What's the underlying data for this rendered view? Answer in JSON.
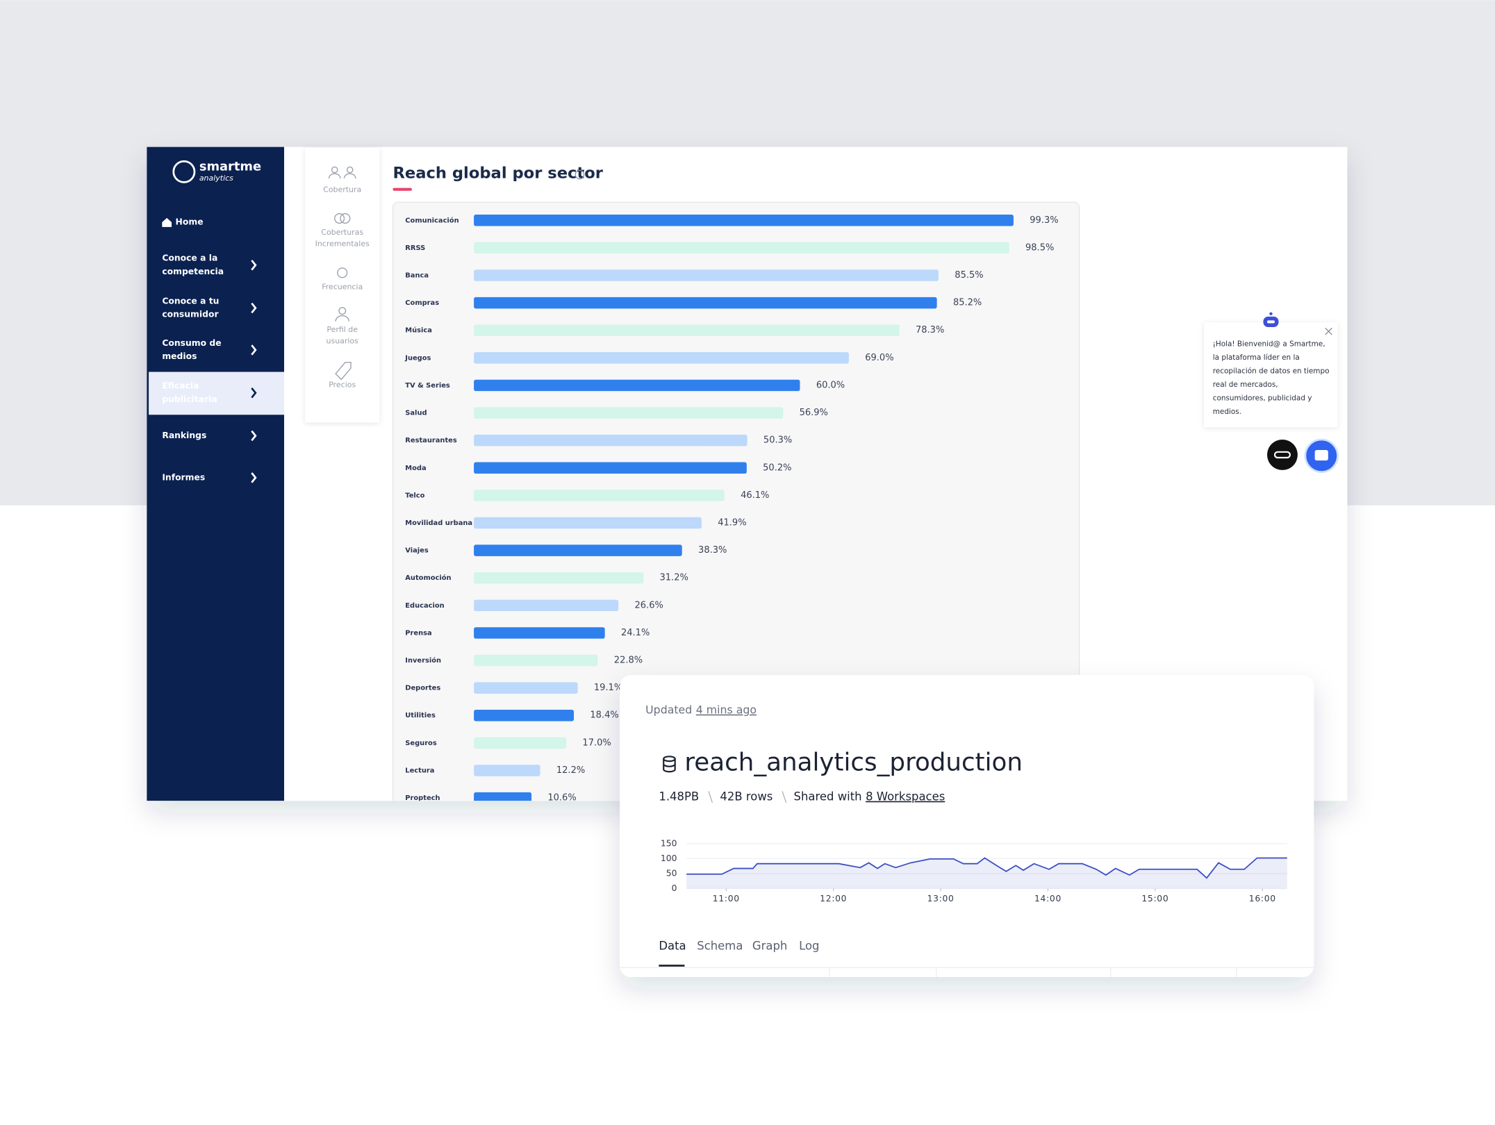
{
  "sidebar": {
    "logo": {
      "name": "smartme",
      "sub": "analytics"
    },
    "items": [
      {
        "label": [
          "Home"
        ]
      },
      {
        "label": [
          "Conoce a la",
          "competencia"
        ]
      },
      {
        "label": [
          "Conoce a tu",
          "consumidor"
        ]
      },
      {
        "label": [
          "Consumo de",
          "medios"
        ]
      },
      {
        "label": [
          "Eficacia",
          "publicitaria"
        ]
      },
      {
        "label": [
          "Rankings"
        ]
      },
      {
        "label": [
          "Informes"
        ]
      }
    ]
  },
  "submenu": [
    [
      "Cobertura"
    ],
    [
      "Coberturas",
      "Incrementales"
    ],
    [
      "Frecuencia"
    ],
    [
      "Perfil de",
      "usuarios"
    ],
    [
      "Precios"
    ]
  ],
  "chat": {
    "message": [
      "¡Hola! Bienvenid@ a Smartme,",
      "la plataforma líder en la",
      "recopilación de datos en tiempo",
      "real de mercados,",
      "consumidores, publicidad y",
      "medios."
    ]
  },
  "dataset": {
    "updated": "Updated",
    "updated_when": "4 mins ago",
    "name": "reach_analytics_production",
    "size": "1.48PB",
    "rows": "42B rows",
    "shared": "Shared with",
    "shared_with": "8 Workspaces",
    "tabs": [
      "Data",
      "Schema",
      "Graph",
      "Log"
    ]
  },
  "chart_data": [
    {
      "type": "barh",
      "title": "Reach global por sector",
      "categories": [
        "Comunicación",
        "RRSS",
        "Banca",
        "Compras",
        "Música",
        "Juegos",
        "TV & Series",
        "Salud",
        "Restaurantes",
        "Moda",
        "Telco",
        "Movilidad urbana",
        "Viajes",
        "Automoción",
        "Educacion",
        "Prensa",
        "Inversión",
        "Deportes",
        "Utilities",
        "Seguros",
        "Lectura",
        "Proptech"
      ],
      "values": [
        99.3,
        98.5,
        85.5,
        85.2,
        78.3,
        69.0,
        60.0,
        56.9,
        50.3,
        50.2,
        46.1,
        41.9,
        38.3,
        31.2,
        26.6,
        24.1,
        22.8,
        19.1,
        18.4,
        17.0,
        12.2,
        10.6
      ],
      "value_labels": [
        "99.3%",
        "98.5%",
        "85.5%",
        "85.2%",
        "78.3%",
        "69.0%",
        "60.0%",
        "56.9%",
        "50.3%",
        "50.2%",
        "46.1%",
        "41.9%",
        "38.3%",
        "31.2%",
        "26.6%",
        "24.1%",
        "22.8%",
        "19.1%",
        "18.4%",
        "17.0%",
        "12.2%",
        "10.6%"
      ],
      "colors": [
        "#2f80ed",
        "#d3f5ea",
        "#bcd8fb"
      ],
      "xlim": [
        0,
        100
      ]
    },
    {
      "type": "area",
      "x": [
        10.63,
        10.96,
        11.07,
        11.25,
        11.29,
        12.05,
        12.25,
        12.33,
        12.41,
        12.48,
        12.58,
        12.72,
        12.9,
        13.12,
        13.21,
        13.34,
        13.41,
        13.52,
        13.61,
        13.7,
        13.77,
        13.87,
        14.01,
        14.1,
        14.32,
        14.45,
        14.54,
        14.63,
        14.76,
        14.85,
        15.39,
        15.48,
        15.59,
        15.7,
        15.83,
        15.95,
        16.23
      ],
      "values": [
        48,
        48,
        67,
        67,
        83,
        83,
        70,
        86,
        67,
        83,
        70,
        86,
        99,
        99,
        83,
        83,
        102,
        77,
        57,
        77,
        61,
        83,
        64,
        83,
        83,
        64,
        45,
        67,
        45,
        64,
        64,
        35,
        86,
        64,
        64,
        102,
        102
      ],
      "color": "#3b4fc4",
      "xlim": [
        10.63,
        16.23
      ],
      "xticks": [
        {
          "value": 11,
          "label": "11:00"
        },
        {
          "value": 12,
          "label": "12:00"
        },
        {
          "value": 13,
          "label": "13:00"
        },
        {
          "value": 14,
          "label": "14:00"
        },
        {
          "value": 15,
          "label": "15:00"
        },
        {
          "value": 16,
          "label": "16:00"
        }
      ],
      "ylim": [
        0,
        150
      ],
      "yticks": [
        0,
        50,
        100,
        150
      ],
      "grid": true
    }
  ]
}
